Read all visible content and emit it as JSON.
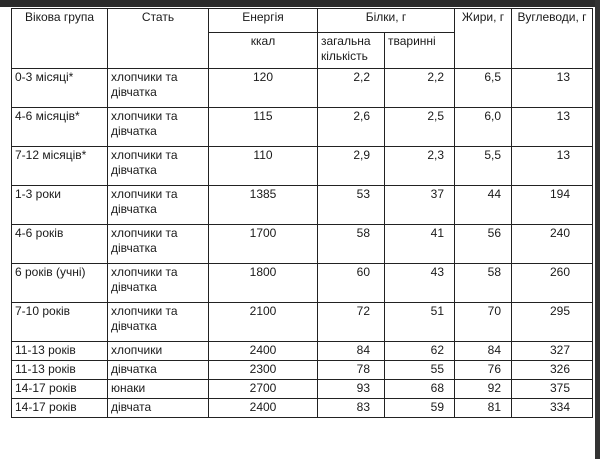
{
  "header": {
    "age_group": "Вікова група",
    "gender": "Стать",
    "energy": "Енергія",
    "protein": "Білки, г",
    "fat": "Жири, г",
    "carbs": "Вуглеводи, г",
    "energy_unit": "ккал",
    "protein_total": "загальна кількість",
    "protein_animal": "тваринні"
  },
  "rows": [
    {
      "age": "0-3 місяці*",
      "gender": "хлопчики та дівчатка",
      "energy": "120",
      "protein_total": "2,2",
      "protein_animal": "2,2",
      "fat": "6,5",
      "carbs": "13"
    },
    {
      "age": "4-6 місяців*",
      "gender": "хлопчики та дівчатка",
      "energy": "115",
      "protein_total": "2,6",
      "protein_animal": "2,5",
      "fat": "6,0",
      "carbs": "13"
    },
    {
      "age": "7-12 місяців*",
      "gender": "хлопчики та дівчатка",
      "energy": "110",
      "protein_total": "2,9",
      "protein_animal": "2,3",
      "fat": "5,5",
      "carbs": "13"
    },
    {
      "age": "1-3 роки",
      "gender": "хлопчики та дівчатка",
      "energy": "1385",
      "protein_total": "53",
      "protein_animal": "37",
      "fat": "44",
      "carbs": "194"
    },
    {
      "age": "4-6 років",
      "gender": "хлопчики та дівчатка",
      "energy": "1700",
      "protein_total": "58",
      "protein_animal": "41",
      "fat": "56",
      "carbs": "240"
    },
    {
      "age": "6 років (учні)",
      "gender": "хлопчики та дівчатка",
      "energy": "1800",
      "protein_total": "60",
      "protein_animal": "43",
      "fat": "58",
      "carbs": "260"
    },
    {
      "age": "7-10 років",
      "gender": "хлопчики та дівчатка",
      "energy": "2100",
      "protein_total": "72",
      "protein_animal": "51",
      "fat": "70",
      "carbs": "295"
    },
    {
      "age": "11-13 років",
      "gender": "хлопчики",
      "energy": "2400",
      "protein_total": "84",
      "protein_animal": "62",
      "fat": "84",
      "carbs": "327"
    },
    {
      "age": "11-13 років",
      "gender": "дівчатка",
      "energy": "2300",
      "protein_total": "78",
      "protein_animal": "55",
      "fat": "76",
      "carbs": "326"
    },
    {
      "age": "14-17 років",
      "gender": "юнаки",
      "energy": "2700",
      "protein_total": "93",
      "protein_animal": "68",
      "fat": "92",
      "carbs": "375"
    },
    {
      "age": "14-17 років",
      "gender": "дівчата",
      "energy": "2400",
      "protein_total": "83",
      "protein_animal": "59",
      "fat": "81",
      "carbs": "334"
    }
  ]
}
